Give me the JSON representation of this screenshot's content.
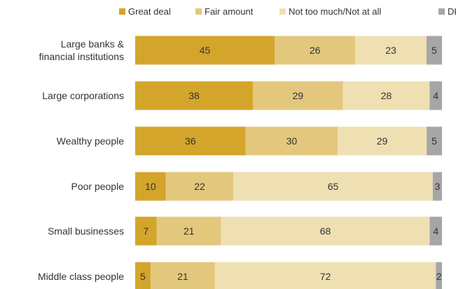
{
  "chart_data": {
    "type": "bar",
    "orientation": "horizontal",
    "stacked": true,
    "categories": [
      [
        "Large banks &",
        "financial institutions"
      ],
      [
        "Large corporations"
      ],
      [
        "Wealthy people"
      ],
      [
        "Poor people"
      ],
      [
        "Small businesses"
      ],
      [
        "Middle class people"
      ]
    ],
    "series": [
      {
        "name": "Great deal",
        "color": "#d4a52b",
        "values": [
          45,
          38,
          36,
          10,
          7,
          5
        ]
      },
      {
        "name": "Fair amount",
        "color": "#e3c77d",
        "values": [
          26,
          29,
          30,
          22,
          21,
          21
        ]
      },
      {
        "name": "Not too much/Not at all",
        "color": "#efe0b3",
        "values": [
          23,
          28,
          29,
          65,
          68,
          72
        ]
      },
      {
        "name": "DK",
        "color": "#a6a6a6",
        "values": [
          5,
          4,
          5,
          3,
          4,
          2
        ]
      }
    ],
    "legend_position": "top-right",
    "grid": false,
    "axes_visible": false
  }
}
